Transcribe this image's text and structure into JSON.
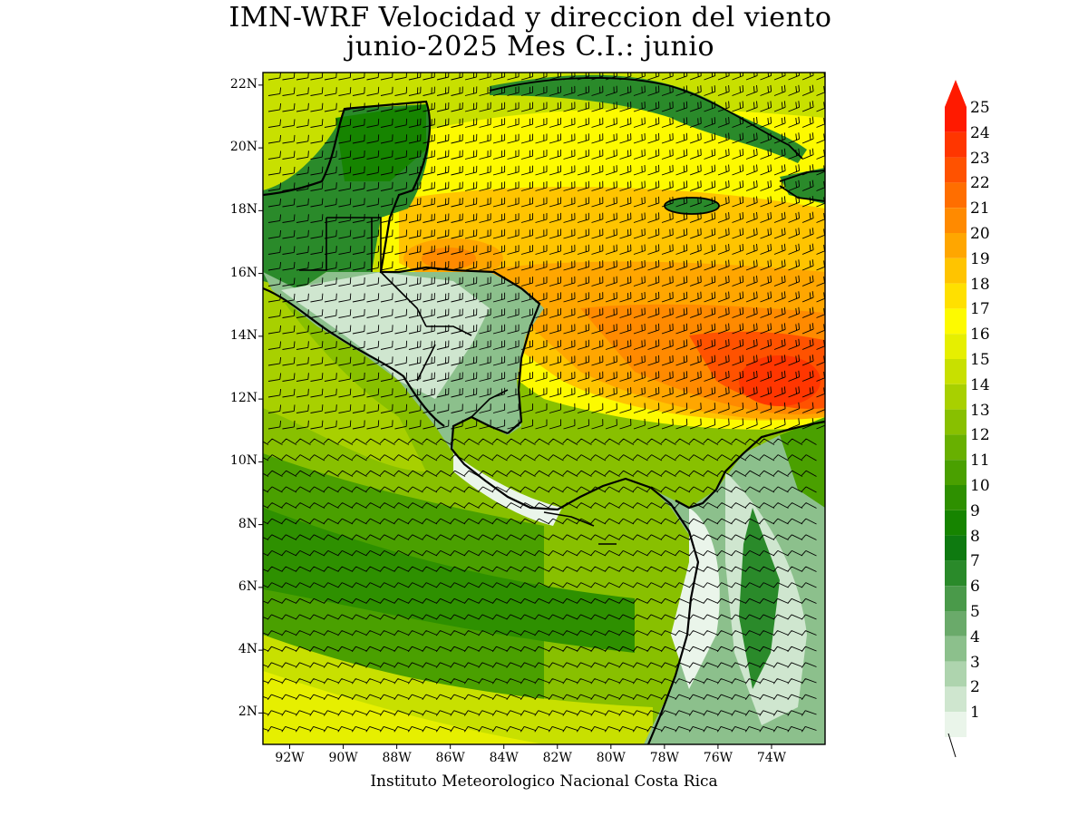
{
  "title_line1": "IMN-WRF Velocidad y direccion del viento",
  "title_line2": "junio-2025 Mes C.I.: junio",
  "credit": "Instituto Meteorologico Nacional Costa Rica",
  "lat_labels": [
    "22N",
    "20N",
    "18N",
    "16N",
    "14N",
    "12N",
    "10N",
    "8N",
    "6N",
    "4N",
    "2N"
  ],
  "lat_values": [
    22,
    20,
    18,
    16,
    14,
    12,
    10,
    8,
    6,
    4,
    2
  ],
  "lon_labels": [
    "92W",
    "90W",
    "88W",
    "86W",
    "84W",
    "82W",
    "80W",
    "78W",
    "76W",
    "74W"
  ],
  "lon_values": [
    -92,
    -90,
    -88,
    -86,
    -84,
    -82,
    -80,
    -78,
    -76,
    -74
  ],
  "extent": {
    "lon_min": -93.0,
    "lon_max": -72.0,
    "lat_min": 1.0,
    "lat_max": 22.4
  },
  "colorbar": {
    "labels": [
      "25",
      "24",
      "23",
      "22",
      "21",
      "20",
      "19",
      "18",
      "17",
      "16",
      "15",
      "14",
      "13",
      "12",
      "11",
      "10",
      "9",
      "8",
      "7",
      "6",
      "5",
      "4",
      "3",
      "2",
      "1"
    ],
    "colors": [
      "#ff1a00",
      "#ff3600",
      "#ff5200",
      "#ff6e00",
      "#ff8a00",
      "#ffa600",
      "#ffc400",
      "#ffe000",
      "#fdfa00",
      "#e6ef00",
      "#c8e000",
      "#a8d000",
      "#88c000",
      "#68b000",
      "#4aa000",
      "#2e9000",
      "#168400",
      "#0e7a10",
      "#2a8a2a",
      "#4a9a4a",
      "#6aaa6a",
      "#8cc08c",
      "#aed4ae",
      "#cfe6cf",
      "#eaf5ea"
    ]
  },
  "colors": {
    "land_outline": "#000000",
    "barbs": "#000000",
    "background": "#ffffff"
  }
}
